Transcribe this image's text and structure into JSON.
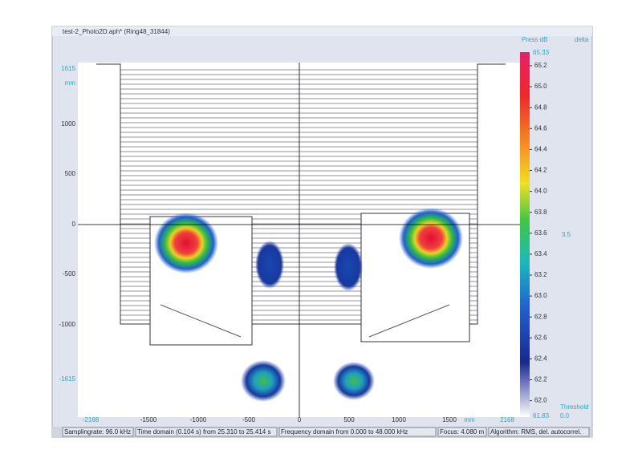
{
  "window": {
    "title": "test-2_Photo2D.aph* (Ring48_31844)"
  },
  "y_axis": {
    "labels": [
      "1615",
      "mm",
      "1000",
      "500",
      "0",
      "-500",
      "-1000",
      "-1615"
    ]
  },
  "x_axis": {
    "labels": [
      "-2168",
      "-1500",
      "-1000",
      "-500",
      "0",
      "500",
      "1000",
      "1500",
      "mm",
      "2168"
    ]
  },
  "colorbar": {
    "header": "Press  dB",
    "delta_label": "delta",
    "max": "65.33",
    "min": "61.83",
    "labels": [
      "65.2",
      "65.0",
      "64.8",
      "64.6",
      "64.4",
      "64.2",
      "64.0",
      "63.8",
      "63.6",
      "63.4",
      "63.2",
      "63.0",
      "62.8",
      "62.6",
      "62.4",
      "62.2",
      "62.0"
    ],
    "delta_value": "3.5",
    "threshold_label": "Threshold",
    "threshold_value": "0.0"
  },
  "status_bar": [
    "Samplingrate: 96.0 kHz",
    "Time domain (0.104 s) from 25.310 to 25.414 s",
    "Frequency domain from 0.000 to 48.000 kHz",
    "Focus: 4.080 m",
    "Algorithm: RMS, del. autocorrel."
  ]
}
